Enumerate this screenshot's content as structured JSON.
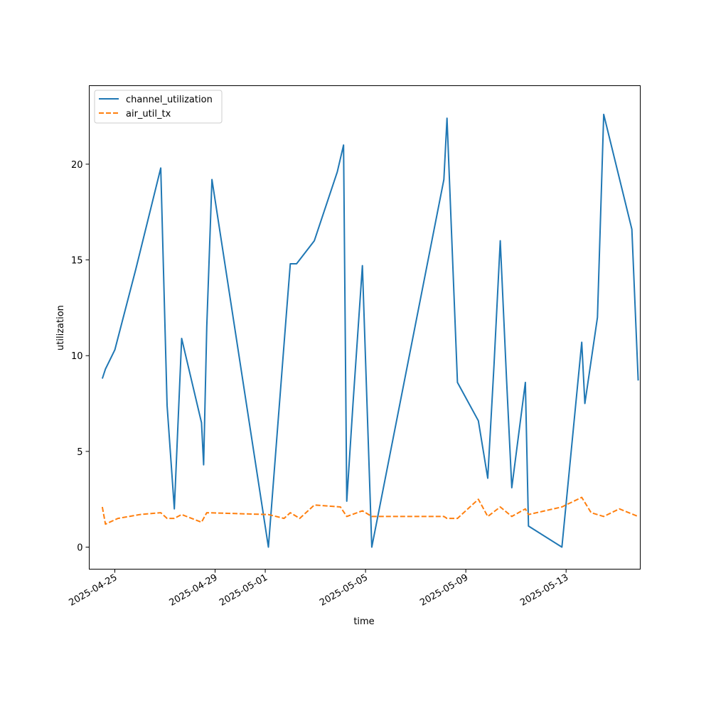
{
  "chart_data": {
    "type": "line",
    "title": "",
    "xlabel": "time",
    "ylabel": "utilization",
    "xlim": [
      "2025-04-23T23:30",
      "2025-05-15T23:00"
    ],
    "ylim": [
      -1.15,
      24.1
    ],
    "xticks": [
      "2025-04-25",
      "2025-04-29",
      "2025-05-01",
      "2025-05-05",
      "2025-05-09",
      "2025-05-13"
    ],
    "yticks": [
      0,
      5,
      10,
      15,
      20
    ],
    "grid": false,
    "legend_position": "top-left",
    "series": [
      {
        "name": "channel_utilization",
        "color": "#1f77b4",
        "dash": "solid",
        "points": [
          [
            "2025-04-24T12:00",
            8.8
          ],
          [
            "2025-04-24T15:00",
            9.3
          ],
          [
            "2025-04-25T00:00",
            10.3
          ],
          [
            "2025-04-25T20:00",
            14.5
          ],
          [
            "2025-04-26T20:00",
            19.8
          ],
          [
            "2025-04-27T02:00",
            7.4
          ],
          [
            "2025-04-27T09:00",
            2.0
          ],
          [
            "2025-04-27T16:00",
            10.9
          ],
          [
            "2025-04-28T11:00",
            6.5
          ],
          [
            "2025-04-28T13:00",
            4.3
          ],
          [
            "2025-04-28T16:00",
            11.5
          ],
          [
            "2025-04-28T21:00",
            19.2
          ],
          [
            "2025-05-01T03:00",
            0.0
          ],
          [
            "2025-05-01T20:00",
            12.0
          ],
          [
            "2025-05-02T00:00",
            14.8
          ],
          [
            "2025-05-02T06:00",
            14.8
          ],
          [
            "2025-05-02T23:00",
            16.0
          ],
          [
            "2025-05-03T21:00",
            19.6
          ],
          [
            "2025-05-04T03:00",
            21.0
          ],
          [
            "2025-05-04T06:00",
            2.4
          ],
          [
            "2025-05-04T12:00",
            7.5
          ],
          [
            "2025-05-04T21:00",
            14.7
          ],
          [
            "2025-05-05T06:00",
            0.0
          ],
          [
            "2025-05-08T03:00",
            19.2
          ],
          [
            "2025-05-08T06:00",
            22.4
          ],
          [
            "2025-05-08T16:00",
            8.6
          ],
          [
            "2025-05-09T12:00",
            6.6
          ],
          [
            "2025-05-09T21:00",
            3.6
          ],
          [
            "2025-05-10T03:00",
            9.5
          ],
          [
            "2025-05-10T09:00",
            16.0
          ],
          [
            "2025-05-10T15:00",
            8.8
          ],
          [
            "2025-05-10T20:00",
            3.1
          ],
          [
            "2025-05-11T09:00",
            8.6
          ],
          [
            "2025-05-11T12:00",
            1.1
          ],
          [
            "2025-05-12T20:00",
            0.0
          ],
          [
            "2025-05-13T15:00",
            10.7
          ],
          [
            "2025-05-13T18:00",
            7.5
          ],
          [
            "2025-05-14T06:00",
            12.0
          ],
          [
            "2025-05-14T12:00",
            22.6
          ],
          [
            "2025-05-15T15:00",
            16.6
          ],
          [
            "2025-05-15T21:00",
            8.7
          ]
        ]
      },
      {
        "name": "air_util_tx",
        "color": "#ff7f0e",
        "dash": "dashed",
        "points": [
          [
            "2025-04-24T12:00",
            2.1
          ],
          [
            "2025-04-24T15:00",
            1.2
          ],
          [
            "2025-04-25T03:00",
            1.5
          ],
          [
            "2025-04-26T00:00",
            1.7
          ],
          [
            "2025-04-26T20:00",
            1.8
          ],
          [
            "2025-04-27T02:00",
            1.5
          ],
          [
            "2025-04-27T09:00",
            1.5
          ],
          [
            "2025-04-27T16:00",
            1.7
          ],
          [
            "2025-04-28T11:00",
            1.3
          ],
          [
            "2025-04-28T16:00",
            1.8
          ],
          [
            "2025-05-01T03:00",
            1.7
          ],
          [
            "2025-05-01T18:00",
            1.5
          ],
          [
            "2025-05-02T00:00",
            1.8
          ],
          [
            "2025-05-02T09:00",
            1.5
          ],
          [
            "2025-05-02T23:00",
            2.2
          ],
          [
            "2025-05-04T00:00",
            2.1
          ],
          [
            "2025-05-04T06:00",
            1.6
          ],
          [
            "2025-05-04T21:00",
            1.9
          ],
          [
            "2025-05-05T06:00",
            1.6
          ],
          [
            "2025-05-08T03:00",
            1.6
          ],
          [
            "2025-05-08T06:00",
            1.5
          ],
          [
            "2025-05-08T16:00",
            1.5
          ],
          [
            "2025-05-09T12:00",
            2.5
          ],
          [
            "2025-05-09T21:00",
            1.6
          ],
          [
            "2025-05-10T09:00",
            2.1
          ],
          [
            "2025-05-10T20:00",
            1.6
          ],
          [
            "2025-05-11T09:00",
            2.0
          ],
          [
            "2025-05-11T12:00",
            1.7
          ],
          [
            "2025-05-12T20:00",
            2.1
          ],
          [
            "2025-05-13T15:00",
            2.6
          ],
          [
            "2025-05-14T00:00",
            1.8
          ],
          [
            "2025-05-14T12:00",
            1.6
          ],
          [
            "2025-05-15T03:00",
            2.0
          ],
          [
            "2025-05-15T21:00",
            1.6
          ]
        ]
      }
    ]
  }
}
